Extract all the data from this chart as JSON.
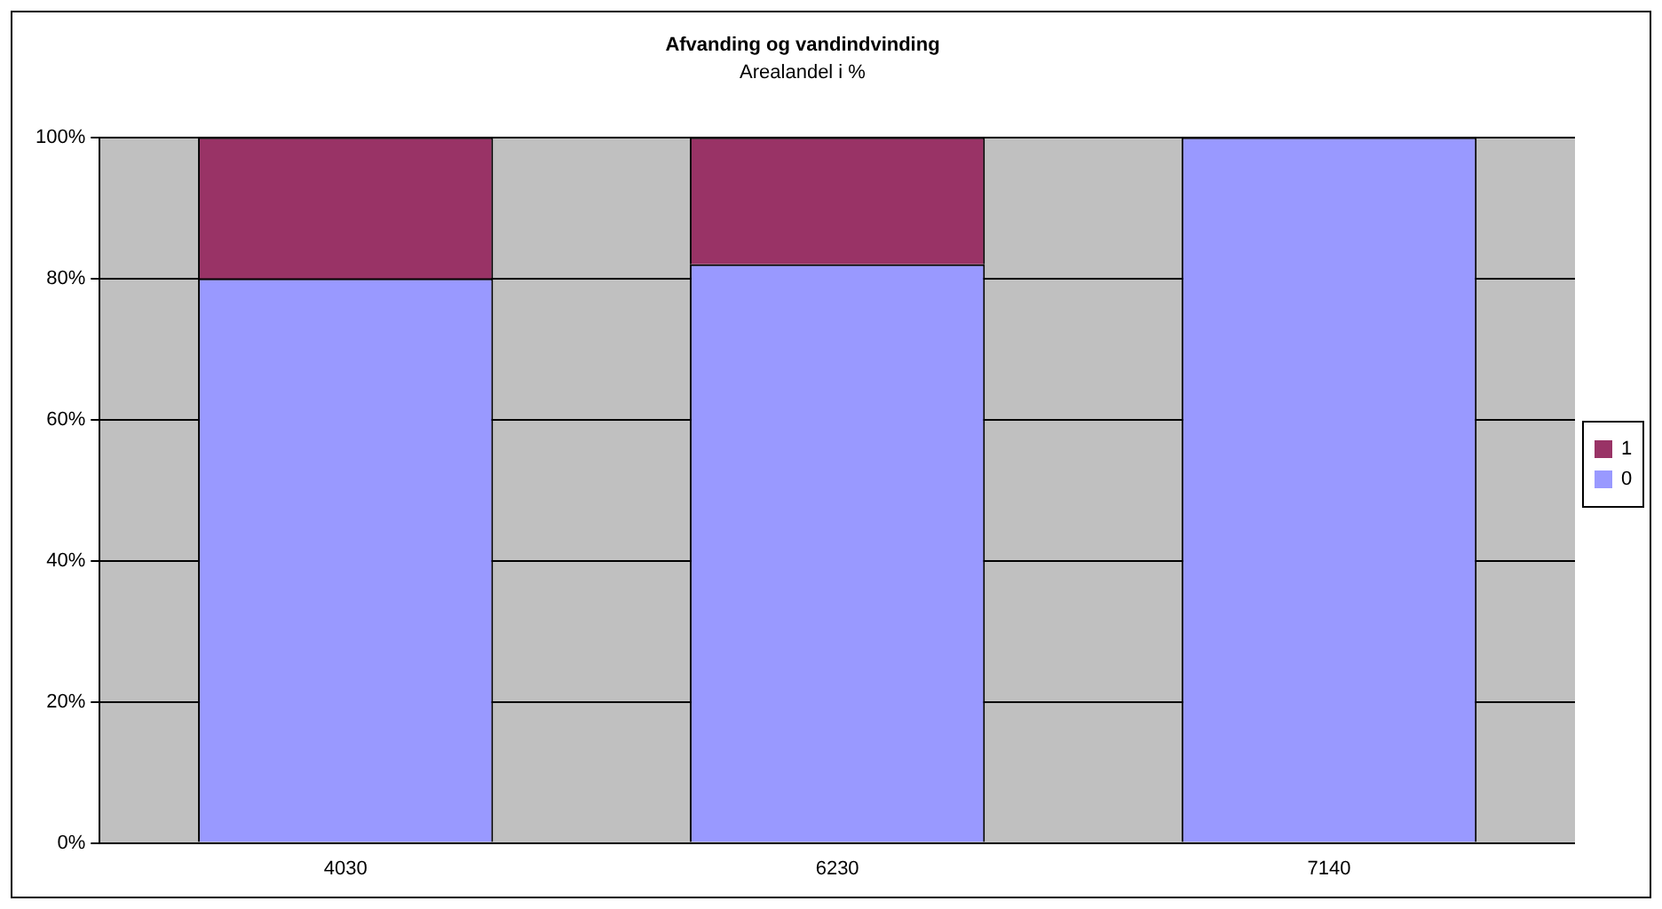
{
  "chart_data": {
    "type": "bar",
    "title": "Afvanding og vandindvinding",
    "subtitle": "Arealandel i %",
    "categories": [
      "4030",
      "6230",
      "7140"
    ],
    "stacked": true,
    "series": [
      {
        "name": "0",
        "color": "#9999ff",
        "values": [
          80,
          82,
          100
        ]
      },
      {
        "name": "1",
        "color": "#993366",
        "values": [
          20,
          18,
          0
        ]
      }
    ],
    "ylim": [
      0,
      100
    ],
    "yticks": [
      {
        "value": 0,
        "label": "0%"
      },
      {
        "value": 20,
        "label": "20%"
      },
      {
        "value": 40,
        "label": "40%"
      },
      {
        "value": 60,
        "label": "60%"
      },
      {
        "value": 80,
        "label": "80%"
      },
      {
        "value": 100,
        "label": "100%"
      }
    ],
    "grid": "y",
    "legend": "right"
  }
}
